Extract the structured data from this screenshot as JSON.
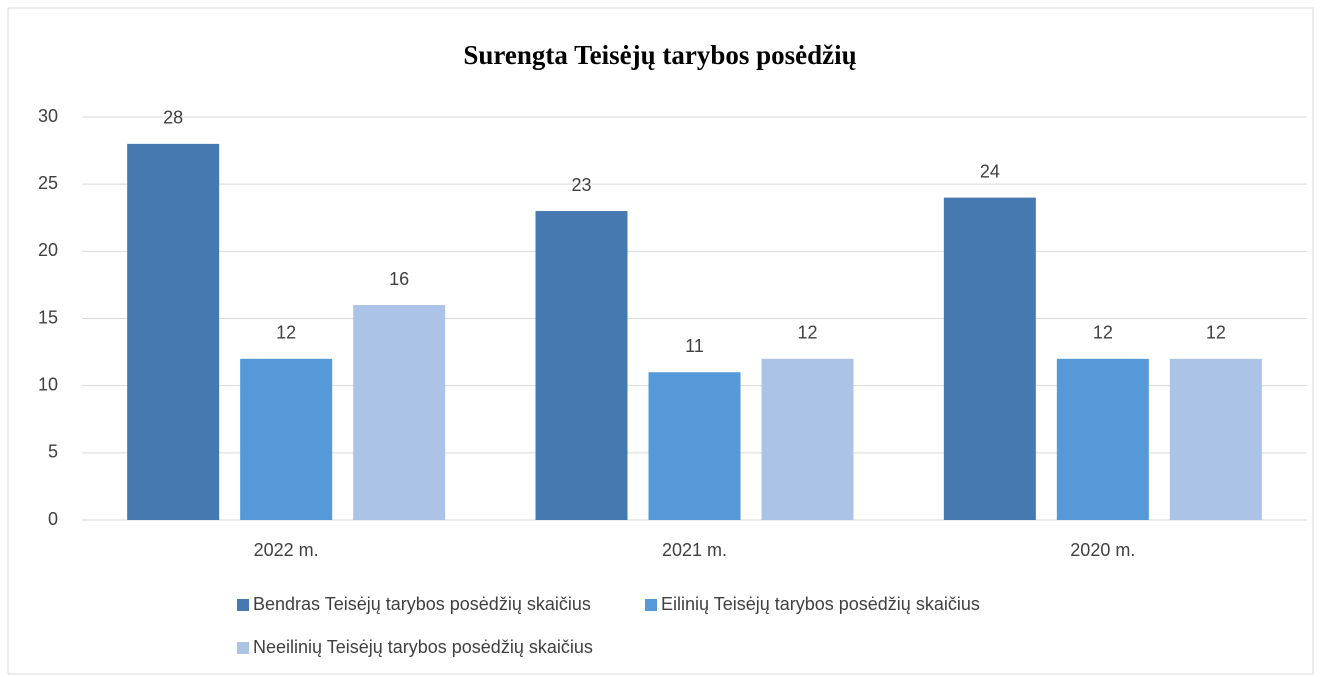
{
  "chart_data": {
    "type": "bar",
    "title": "Surengta Teisėjų tarybos posėdžių",
    "categories": [
      "2022 m.",
      "2021 m.",
      "2020 m."
    ],
    "series": [
      {
        "name": "Bendras Teisėjų tarybos posėdžių skaičius",
        "color": "#4679b0",
        "values": [
          28,
          23,
          24
        ]
      },
      {
        "name": "Eilinių Teisėjų tarybos posėdžių skaičius",
        "color": "#5599d8",
        "values": [
          12,
          11,
          12
        ]
      },
      {
        "name": "Neeilinių Teisėjų tarybos posėdžių skaičius",
        "color": "#aac3e6",
        "values": [
          16,
          12,
          12
        ]
      }
    ],
    "ylim": [
      0,
      30
    ],
    "yticks": [
      0,
      5,
      10,
      15,
      20,
      25,
      30
    ],
    "grid": true,
    "legend": "bottom"
  }
}
